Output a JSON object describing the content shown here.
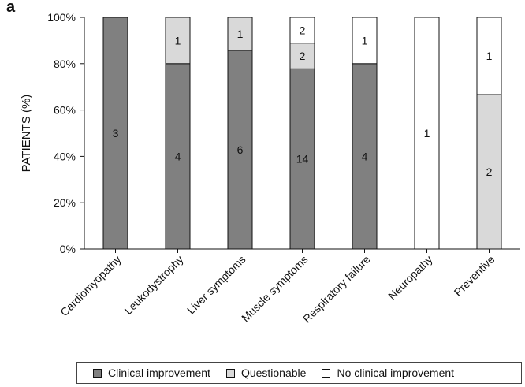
{
  "panel_label": "a",
  "chart_data": {
    "type": "bar",
    "stacked": true,
    "ylabel": "PATIENTS (%)",
    "ylim": [
      0,
      100
    ],
    "yticks": [
      "0%",
      "20%",
      "40%",
      "60%",
      "80%",
      "100%"
    ],
    "categories": [
      "Cardiomyopathy",
      "Leukodystrophy",
      "Liver symptoms",
      "Muscle symptoms",
      "Respiratory failure",
      "Neuropathy",
      "Preventive"
    ],
    "series": [
      {
        "name": "Clinical improvement",
        "color": "#808080",
        "counts": [
          3,
          4,
          6,
          14,
          4,
          0,
          0
        ]
      },
      {
        "name": "Questionable",
        "color": "#d9d9d9",
        "counts": [
          0,
          1,
          1,
          2,
          0,
          0,
          2
        ]
      },
      {
        "name": "No clinical improvement",
        "color": "#ffffff",
        "counts": [
          0,
          0,
          0,
          2,
          1,
          1,
          1
        ]
      }
    ],
    "grid": false,
    "legend_position": "bottom"
  }
}
